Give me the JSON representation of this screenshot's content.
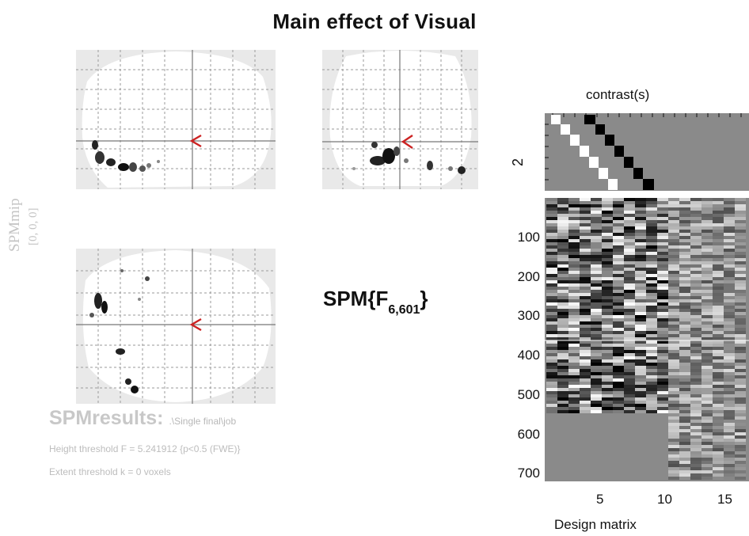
{
  "title": "Main effect of Visual",
  "mip": {
    "side_label": "SPMmip",
    "coord_label": "[0, 0, 0]"
  },
  "statistic": {
    "prefix": "SPM{F",
    "subscript": "6,601",
    "suffix": "}"
  },
  "results": {
    "heading": "SPMresults:",
    "path": ".\\Single final\\job",
    "height_threshold": "Height threshold F = 5.241912  {p<0.5 (FWE)}",
    "extent_threshold": "Extent threshold k = 0 voxels"
  },
  "contrast": {
    "title": "contrast(s)",
    "row_label": "2"
  },
  "design_matrix": {
    "xlabel": "Design matrix",
    "y_ticks": [
      "100",
      "200",
      "300",
      "400",
      "500",
      "600",
      "700"
    ],
    "x_ticks": [
      "5",
      "10",
      "15"
    ]
  },
  "colors": {
    "cursor": "#cc2222",
    "matrix_background": "#8a8a8a",
    "muted_text": "#c8c8c8"
  }
}
